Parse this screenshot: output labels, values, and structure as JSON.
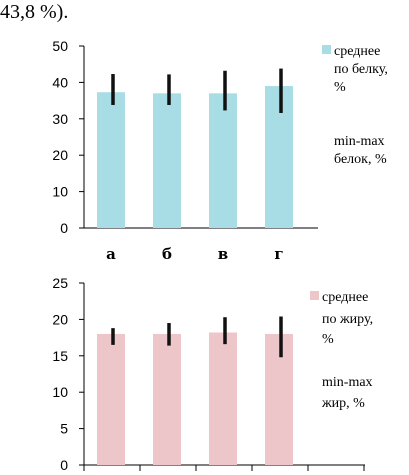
{
  "page": {
    "top_text": "43,8 %)."
  },
  "chart_data": [
    {
      "type": "bar",
      "categories": [
        "а",
        "б",
        "в",
        "г"
      ],
      "series": [
        {
          "name": "среднее по белку, %",
          "values": [
            37.3,
            37.0,
            37.0,
            39.0
          ],
          "color": "#a9dde6"
        }
      ],
      "error_ranges": {
        "name": "min-max белок, %",
        "low": [
          33.8,
          33.8,
          32.3,
          31.6
        ],
        "high": [
          42.3,
          42.2,
          43.2,
          43.8
        ]
      },
      "ylim": [
        0,
        50
      ],
      "yticks": [
        "0",
        "10",
        "20",
        "30",
        "40",
        "50"
      ],
      "legend": [
        "среднее",
        "по белку,",
        "%",
        "min-max",
        "белок, %"
      ],
      "grid": false
    },
    {
      "type": "bar",
      "categories": [
        "",
        "",
        "",
        ""
      ],
      "series": [
        {
          "name": "среднее по жиру, %",
          "values": [
            18.0,
            18.0,
            18.2,
            18.0
          ],
          "color": "#ecc6c8"
        }
      ],
      "error_ranges": {
        "name": "min-max жир, %",
        "low": [
          16.5,
          16.4,
          16.6,
          14.8
        ],
        "high": [
          18.8,
          19.5,
          20.3,
          20.4
        ]
      },
      "ylim": [
        0,
        25
      ],
      "yticks": [
        "0",
        "5",
        "10",
        "15",
        "20",
        "25"
      ],
      "legend": [
        "среднее",
        "по жиру,",
        "%",
        "min-max",
        "жир, %"
      ],
      "grid": false
    }
  ]
}
